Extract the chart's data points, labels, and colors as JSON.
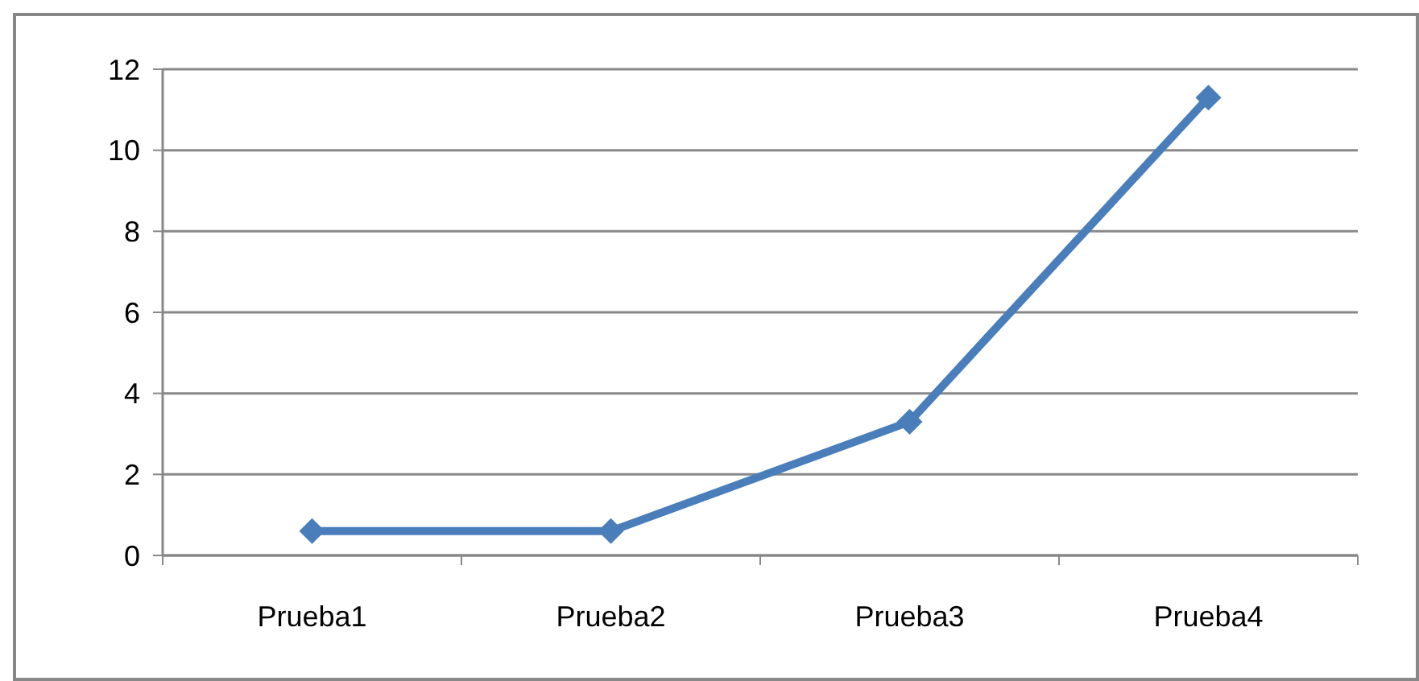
{
  "chart_data": {
    "type": "line",
    "categories": [
      "Prueba1",
      "Prueba2",
      "Prueba3",
      "Prueba4"
    ],
    "series": [
      {
        "color": "#4a7ebb",
        "values": [
          0.6,
          0.6,
          3.3,
          11.3
        ]
      }
    ],
    "ylim": [
      0,
      12
    ],
    "yticks": [
      0,
      2,
      4,
      6,
      8,
      10,
      12
    ],
    "grid": "y",
    "marker": "diamond",
    "line_style": "solid"
  }
}
